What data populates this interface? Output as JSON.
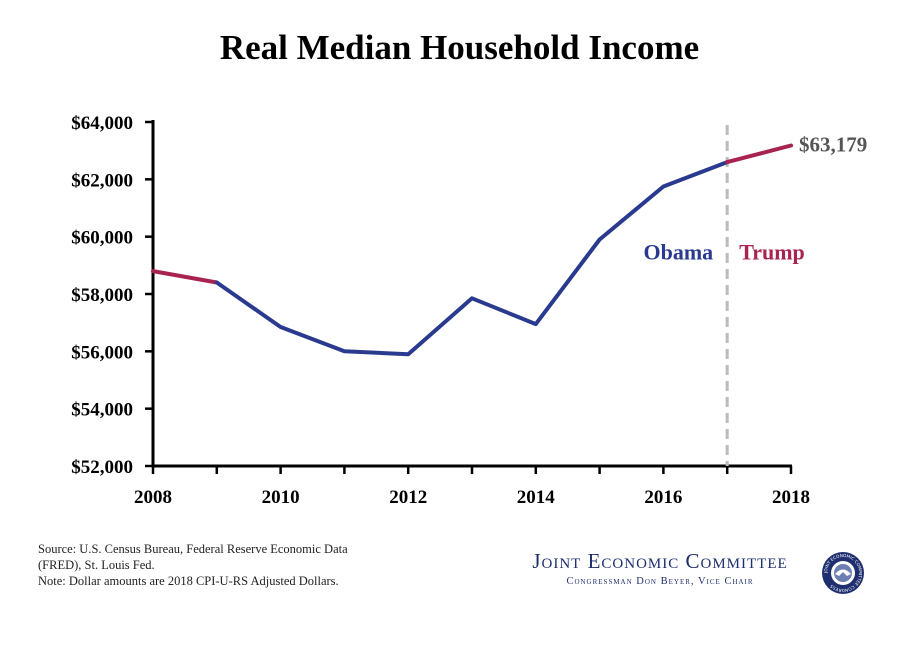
{
  "chart_data": {
    "type": "line",
    "title": "Real Median Household Income",
    "xlabel": "",
    "ylabel": "",
    "x": [
      2008,
      2009,
      2010,
      2011,
      2012,
      2013,
      2014,
      2015,
      2016,
      2017,
      2018
    ],
    "values": [
      58800,
      58400,
      56850,
      56000,
      55900,
      57850,
      56950,
      59900,
      61750,
      62600,
      63179
    ],
    "xlim": [
      2008,
      2018
    ],
    "ylim": [
      52000,
      64000
    ],
    "x_ticks": [
      "2008",
      "2010",
      "2012",
      "2014",
      "2016",
      "2018"
    ],
    "y_ticks": [
      "$52,000",
      "$54,000",
      "$56,000",
      "$58,000",
      "$60,000",
      "$62,000",
      "$64,000"
    ],
    "y_tick_values": [
      52000,
      54000,
      56000,
      58000,
      60000,
      62000,
      64000
    ],
    "segments": [
      {
        "from": 2008,
        "to": 2009,
        "color": "#a8234f"
      },
      {
        "from": 2009,
        "to": 2017,
        "color": "#2a3a8f"
      },
      {
        "from": 2017,
        "to": 2018,
        "color": "#a8234f"
      }
    ],
    "divider_x": 2017,
    "end_label": "$63,179",
    "annotations": [
      {
        "text": "Obama",
        "color": "#2a3a8f",
        "side": "left"
      },
      {
        "text": "Trump",
        "color": "#a8234f",
        "side": "right"
      }
    ],
    "grid": false
  },
  "footer": {
    "source_lines": [
      "Source: U.S. Census Bureau, Federal Reserve Economic Data",
      "(FRED), St. Louis Fed.",
      "Note: Dollar amounts are 2018 CPI-U-RS Adjusted Dollars."
    ],
    "org_name": "Joint Economic Committee",
    "org_sub": "Congressman Don Beyer, Vice Chair",
    "seal_text": "JOINT ECONOMIC COMMITTEE CONGRESS"
  }
}
